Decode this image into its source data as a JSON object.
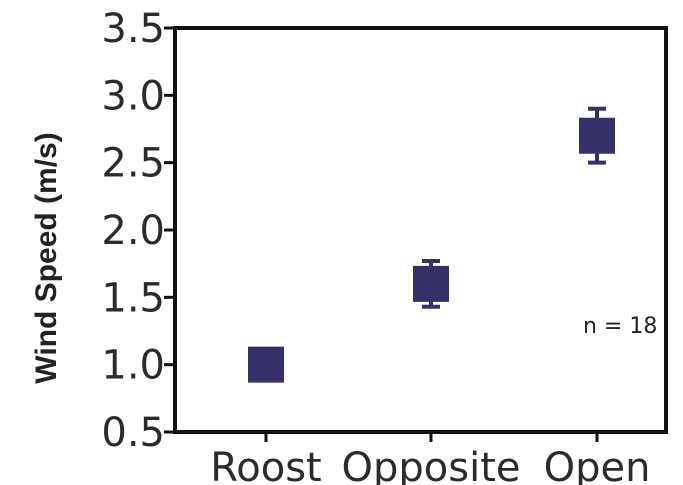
{
  "chart_data": {
    "type": "scatter",
    "title": "",
    "xlabel": "",
    "ylabel": "Wind Speed (m/s)",
    "categories": [
      "Roost",
      "Opposite",
      "Open"
    ],
    "series": [
      {
        "values": [
          1.0,
          1.6,
          2.7
        ],
        "error_low": [
          1.0,
          1.43,
          2.5
        ],
        "error_high": [
          1.0,
          1.77,
          2.9
        ]
      }
    ],
    "ylim": [
      0.5,
      3.5
    ],
    "yticks": [
      "0.5",
      "1.0",
      "1.5",
      "2.0",
      "2.5",
      "3.0",
      "3.5"
    ],
    "grid": false,
    "legend": "none",
    "annotation": "n = 18",
    "marker_color": "#34306a",
    "axis_color": "#111111"
  }
}
